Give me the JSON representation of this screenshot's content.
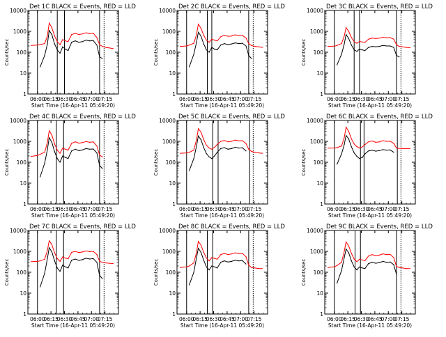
{
  "figure": {
    "ylabel": "Counts/sec",
    "xlabel": "Start Time (16-Apr-11 05:49:20)",
    "x_ticks": [
      "06:00",
      "06:15",
      "06:30",
      "06:45",
      "07:00",
      "07:15"
    ],
    "y_ticks": [
      "1",
      "10",
      "100",
      "1000",
      "10000"
    ]
  },
  "chart_data": [
    {
      "type": "line",
      "title": "Det 1C BLACK = Events, RED = LLD",
      "xlabel": "Start Time (16-Apr-11 05:49:20)",
      "ylabel": "Counts/sec",
      "yscale": "log",
      "ylim": [
        1,
        10000
      ],
      "x": [
        "05:53",
        "06:00",
        "06:03",
        "06:08",
        "06:11",
        "06:13",
        "06:16",
        "06:19",
        "06:22",
        "06:25",
        "06:28",
        "06:31",
        "06:34",
        "06:38",
        "06:42",
        "06:46",
        "06:50",
        "06:54",
        "06:58",
        "07:02",
        "07:06",
        "07:09",
        "07:12",
        "07:16",
        "07:20",
        "07:24"
      ],
      "series": [
        {
          "name": "BLACK = Events",
          "color": "#000000",
          "values": [
            null,
            null,
            20,
            70,
            250,
            1100,
            700,
            250,
            130,
            90,
            180,
            140,
            120,
            300,
            350,
            300,
            320,
            380,
            350,
            360,
            220,
            60,
            50,
            null,
            null,
            null
          ]
        },
        {
          "name": "RED = LLD",
          "color": "#ff0000",
          "values": [
            210,
            220,
            230,
            260,
            600,
            2500,
            1500,
            600,
            320,
            230,
            400,
            350,
            320,
            700,
            800,
            700,
            750,
            850,
            780,
            820,
            500,
            230,
            190,
            170,
            160,
            150
          ]
        }
      ],
      "markers": [
        "06:00",
        "06:22",
        "06:30",
        "07:09",
        "07:14"
      ]
    },
    {
      "type": "line",
      "title": "Det 2C BLACK = Events, RED = LLD",
      "xlabel": "Start Time (16-Apr-11 05:49:20)",
      "ylabel": "Counts/sec",
      "yscale": "log",
      "ylim": [
        1,
        10000
      ],
      "x": [
        "05:53",
        "06:00",
        "06:03",
        "06:08",
        "06:11",
        "06:13",
        "06:16",
        "06:19",
        "06:22",
        "06:25",
        "06:28",
        "06:31",
        "06:34",
        "06:38",
        "06:42",
        "06:46",
        "06:50",
        "06:54",
        "06:58",
        "07:02",
        "07:06",
        "07:09",
        "07:12",
        "07:16",
        "07:20",
        "07:24"
      ],
      "series": [
        {
          "name": "BLACK = Events",
          "color": "#000000",
          "values": [
            null,
            null,
            20,
            80,
            300,
            900,
            600,
            250,
            130,
            100,
            170,
            140,
            130,
            220,
            260,
            230,
            250,
            280,
            260,
            270,
            200,
            70,
            50,
            null,
            null,
            null
          ]
        },
        {
          "name": "RED = LLD",
          "color": "#ff0000",
          "values": [
            190,
            200,
            220,
            270,
            700,
            2200,
            1400,
            650,
            380,
            300,
            420,
            380,
            350,
            550,
            650,
            580,
            600,
            680,
            620,
            640,
            480,
            260,
            210,
            190,
            180,
            170
          ]
        }
      ],
      "markers": [
        "06:00",
        "06:23",
        "06:28",
        "07:09",
        "07:14"
      ]
    },
    {
      "type": "line",
      "title": "Det 3C BLACK = Events, RED = LLD",
      "xlabel": "Start Time (16-Apr-11 05:49:20)",
      "ylabel": "Counts/sec",
      "yscale": "log",
      "ylim": [
        1,
        10000
      ],
      "x": [
        "05:53",
        "06:00",
        "06:03",
        "06:08",
        "06:11",
        "06:13",
        "06:16",
        "06:19",
        "06:22",
        "06:25",
        "06:28",
        "06:31",
        "06:34",
        "06:38",
        "06:42",
        "06:46",
        "06:50",
        "06:54",
        "06:58",
        "07:02",
        "07:06",
        "07:09",
        "07:12",
        "07:16",
        "07:20",
        "07:24"
      ],
      "series": [
        {
          "name": "BLACK = Events",
          "color": "#000000",
          "values": [
            null,
            null,
            25,
            80,
            250,
            700,
            450,
            220,
            130,
            110,
            140,
            130,
            120,
            170,
            190,
            180,
            190,
            210,
            200,
            200,
            170,
            70,
            60,
            null,
            null,
            null
          ]
        },
        {
          "name": "RED = LLD",
          "color": "#ff0000",
          "values": [
            190,
            195,
            210,
            260,
            600,
            1500,
            1000,
            500,
            320,
            270,
            330,
            310,
            300,
            420,
            480,
            450,
            470,
            520,
            490,
            500,
            420,
            230,
            190,
            180,
            170,
            165
          ]
        }
      ],
      "markers": [
        "06:00",
        "06:22",
        "06:28",
        "07:09",
        "07:14"
      ]
    },
    {
      "type": "line",
      "title": "Det 4C BLACK = Events, RED = LLD",
      "xlabel": "Start Time (16-Apr-11 05:49:20)",
      "ylabel": "Counts/sec",
      "yscale": "log",
      "ylim": [
        1,
        10000
      ],
      "x": [
        "05:53",
        "06:00",
        "06:03",
        "06:08",
        "06:11",
        "06:13",
        "06:16",
        "06:19",
        "06:22",
        "06:25",
        "06:28",
        "06:31",
        "06:34",
        "06:38",
        "06:42",
        "06:46",
        "06:50",
        "06:54",
        "06:58",
        "07:02",
        "07:06",
        "07:09",
        "07:12",
        "07:16",
        "07:20",
        "07:24"
      ],
      "series": [
        {
          "name": "BLACK = Events",
          "color": "#000000",
          "values": [
            null,
            null,
            20,
            90,
            400,
            1500,
            900,
            320,
            150,
            100,
            200,
            170,
            150,
            350,
            420,
            360,
            390,
            450,
            420,
            430,
            280,
            70,
            50,
            null,
            null,
            null
          ]
        },
        {
          "name": "RED = LLD",
          "color": "#ff0000",
          "values": [
            190,
            210,
            240,
            300,
            900,
            3200,
            2000,
            750,
            380,
            270,
            470,
            420,
            380,
            800,
            950,
            820,
            870,
            980,
            900,
            940,
            600,
            220,
            180,
            null,
            null,
            null
          ]
        }
      ],
      "markers": [
        "06:00",
        "06:21",
        "06:29",
        "07:09",
        "07:14"
      ]
    },
    {
      "type": "line",
      "title": "Det 5C BLACK = Events, RED = LLD",
      "xlabel": "Start Time (16-Apr-11 05:49:20)",
      "ylabel": "Counts/sec",
      "yscale": "log",
      "ylim": [
        1,
        10000
      ],
      "x": [
        "05:53",
        "06:00",
        "06:03",
        "06:08",
        "06:11",
        "06:13",
        "06:16",
        "06:19",
        "06:22",
        "06:25",
        "06:28",
        "06:31",
        "06:34",
        "06:38",
        "06:42",
        "06:46",
        "06:50",
        "06:54",
        "06:58",
        "07:02",
        "07:06",
        "07:09",
        "07:12",
        "07:16",
        "07:20",
        "07:24"
      ],
      "series": [
        {
          "name": "BLACK = Events",
          "color": "#000000",
          "values": [
            null,
            null,
            40,
            150,
            600,
            1800,
            1200,
            500,
            260,
            180,
            150,
            200,
            300,
            450,
            500,
            420,
            450,
            520,
            480,
            490,
            350,
            null,
            null,
            null,
            null,
            null
          ]
        },
        {
          "name": "RED = LLD",
          "color": "#ff0000",
          "values": [
            270,
            280,
            300,
            380,
            1200,
            4000,
            2800,
            1200,
            650,
            480,
            420,
            520,
            700,
            1000,
            1100,
            950,
            1000,
            1150,
            1050,
            1080,
            780,
            420,
            330,
            300,
            280,
            270
          ]
        }
      ],
      "markers": [
        "06:00",
        "06:29",
        "06:35",
        "07:10",
        "07:14"
      ]
    },
    {
      "type": "line",
      "title": "Det 6C BLACK = Events, RED = LLD",
      "xlabel": "Start Time (16-Apr-11 05:49:20)",
      "ylabel": "Counts/sec",
      "yscale": "log",
      "ylim": [
        1,
        10000
      ],
      "x": [
        "05:53",
        "06:00",
        "06:03",
        "06:08",
        "06:11",
        "06:13",
        "06:16",
        "06:19",
        "06:22",
        "06:25",
        "06:28",
        "06:31",
        "06:34",
        "06:38",
        "06:42",
        "06:46",
        "06:50",
        "06:54",
        "06:58",
        "07:02",
        "07:06",
        "07:09",
        "07:12",
        "07:16",
        "07:20",
        "07:24"
      ],
      "series": [
        {
          "name": "BLACK = Events",
          "color": "#000000",
          "values": [
            null,
            null,
            80,
            250,
            700,
            1900,
            1300,
            550,
            280,
            190,
            150,
            170,
            250,
            350,
            380,
            340,
            360,
            400,
            380,
            390,
            300,
            null,
            null,
            null,
            null,
            null
          ]
        },
        {
          "name": "RED = LLD",
          "color": "#ff0000",
          "values": [
            470,
            480,
            500,
            600,
            1500,
            4800,
            3000,
            1300,
            750,
            560,
            480,
            540,
            700,
            950,
            1050,
            900,
            950,
            1080,
            1000,
            1020,
            800,
            480,
            460,
            450,
            450,
            450
          ]
        }
      ],
      "markers": [
        "06:00",
        "06:29",
        "06:33",
        "07:10",
        "07:14"
      ]
    },
    {
      "type": "line",
      "title": "Det 7C BLACK = Events, RED = LLD",
      "xlabel": "Start Time (16-Apr-11 05:49:20)",
      "ylabel": "Counts/sec",
      "yscale": "log",
      "ylim": [
        1,
        10000
      ],
      "x": [
        "05:53",
        "06:00",
        "06:03",
        "06:08",
        "06:11",
        "06:13",
        "06:16",
        "06:19",
        "06:22",
        "06:25",
        "06:28",
        "06:31",
        "06:34",
        "06:38",
        "06:42",
        "06:46",
        "06:50",
        "06:54",
        "06:58",
        "07:02",
        "07:06",
        "07:09",
        "07:12",
        "07:16",
        "07:20",
        "07:24"
      ],
      "series": [
        {
          "name": "BLACK = Events",
          "color": "#000000",
          "values": [
            null,
            null,
            20,
            90,
            450,
            1500,
            950,
            350,
            160,
            110,
            220,
            180,
            160,
            380,
            430,
            370,
            400,
            470,
            430,
            450,
            300,
            70,
            50,
            null,
            null,
            null
          ]
        },
        {
          "name": "RED = LLD",
          "color": "#ff0000",
          "values": [
            320,
            330,
            350,
            420,
            1100,
            3200,
            2100,
            850,
            450,
            330,
            540,
            480,
            440,
            900,
            1000,
            880,
            930,
            1050,
            970,
            1000,
            700,
            330,
            300,
            280,
            270,
            260
          ]
        }
      ],
      "markers": [
        "06:00",
        "06:21",
        "06:29",
        "07:09",
        "07:14"
      ]
    },
    {
      "type": "line",
      "title": "Det 8C BLACK = Events, RED = LLD",
      "xlabel": "Start Time (16-Apr-11 05:49:20)",
      "ylabel": "Counts/sec",
      "yscale": "log",
      "ylim": [
        1,
        10000
      ],
      "x": [
        "05:53",
        "06:00",
        "06:03",
        "06:08",
        "06:11",
        "06:13",
        "06:16",
        "06:19",
        "06:22",
        "06:25",
        "06:28",
        "06:31",
        "06:34",
        "06:38",
        "06:42",
        "06:46",
        "06:50",
        "06:54",
        "06:58",
        "07:02",
        "07:06",
        "07:09",
        "07:12",
        "07:16",
        "07:20",
        "07:24"
      ],
      "series": [
        {
          "name": "BLACK = Events",
          "color": "#000000",
          "values": [
            null,
            null,
            25,
            100,
            500,
            1400,
            900,
            380,
            180,
            130,
            200,
            180,
            160,
            300,
            350,
            310,
            330,
            380,
            350,
            360,
            250,
            null,
            null,
            null,
            null,
            null
          ]
        },
        {
          "name": "RED = LLD",
          "color": "#ff0000",
          "values": [
            170,
            180,
            200,
            280,
            900,
            3000,
            2000,
            900,
            480,
            350,
            500,
            460,
            420,
            700,
            800,
            700,
            750,
            850,
            780,
            800,
            550,
            220,
            170,
            160,
            150,
            150
          ]
        }
      ],
      "markers": [
        "06:00",
        "06:23",
        "06:29",
        "07:09",
        "07:14"
      ]
    },
    {
      "type": "line",
      "title": "Det 9C BLACK = Events, RED = LLD",
      "xlabel": "Start Time (16-Apr-11 05:49:20)",
      "ylabel": "Counts/sec",
      "yscale": "log",
      "ylim": [
        1,
        10000
      ],
      "x": [
        "05:53",
        "06:00",
        "06:03",
        "06:08",
        "06:11",
        "06:13",
        "06:16",
        "06:19",
        "06:22",
        "06:25",
        "06:28",
        "06:31",
        "06:34",
        "06:38",
        "06:42",
        "06:46",
        "06:50",
        "06:54",
        "06:58",
        "07:02",
        "07:06",
        "07:09",
        "07:12",
        "07:16",
        "07:20",
        "07:24"
      ],
      "series": [
        {
          "name": "BLACK = Events",
          "color": "#000000",
          "values": [
            null,
            null,
            30,
            120,
            500,
            1300,
            850,
            350,
            180,
            130,
            180,
            160,
            150,
            260,
            300,
            270,
            290,
            330,
            300,
            310,
            230,
            80,
            null,
            null,
            null,
            null
          ]
        },
        {
          "name": "RED = LLD",
          "color": "#ff0000",
          "values": [
            170,
            180,
            210,
            300,
            1000,
            2800,
            1800,
            800,
            430,
            320,
            420,
            390,
            360,
            600,
            700,
            620,
            660,
            760,
            700,
            720,
            500,
            190,
            170,
            160,
            150,
            150
          ]
        }
      ],
      "markers": [
        "06:00",
        "06:23",
        "06:29",
        "07:09",
        "07:14"
      ]
    }
  ]
}
